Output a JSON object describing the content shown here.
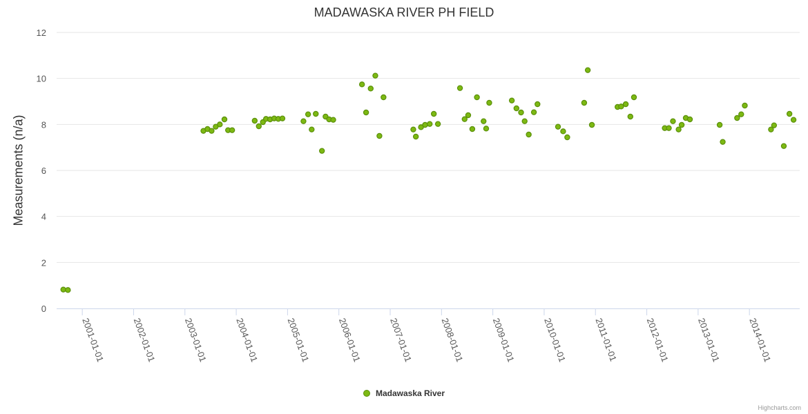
{
  "chart_data": {
    "type": "scatter",
    "title": "MADAWASKA RIVER PH FIELD",
    "ylabel": "Measurements (n/a)",
    "xlabel": "",
    "ylim": [
      0,
      12
    ],
    "yticks": [
      "0",
      "2",
      "4",
      "6",
      "8",
      "10",
      "12"
    ],
    "xticks": [
      "2001-01-01",
      "2002-01-01",
      "2003-01-01",
      "2004-01-01",
      "2005-01-01",
      "2006-01-01",
      "2007-01-01",
      "2008-01-01",
      "2009-01-01",
      "2010-01-01",
      "2011-01-01",
      "2012-01-01",
      "2013-01-01",
      "2014-01-01"
    ],
    "xrange": [
      2000.5,
      2014.98
    ],
    "legend": "bottom-center",
    "series": [
      {
        "name": "Madawaska River",
        "color": "#7db913",
        "points": [
          [
            2000.63,
            0.82
          ],
          [
            2000.72,
            0.8
          ],
          [
            2003.36,
            7.72
          ],
          [
            2003.44,
            7.8
          ],
          [
            2003.52,
            7.72
          ],
          [
            2003.6,
            7.9
          ],
          [
            2003.68,
            8.0
          ],
          [
            2003.77,
            8.22
          ],
          [
            2003.84,
            7.75
          ],
          [
            2003.92,
            7.75
          ],
          [
            2004.36,
            8.16
          ],
          [
            2004.44,
            7.92
          ],
          [
            2004.52,
            8.1
          ],
          [
            2004.58,
            8.24
          ],
          [
            2004.66,
            8.22
          ],
          [
            2004.74,
            8.26
          ],
          [
            2004.82,
            8.24
          ],
          [
            2004.9,
            8.26
          ],
          [
            2005.31,
            8.14
          ],
          [
            2005.4,
            8.44
          ],
          [
            2005.47,
            7.78
          ],
          [
            2005.55,
            8.46
          ],
          [
            2005.67,
            6.85
          ],
          [
            2005.74,
            8.34
          ],
          [
            2005.81,
            8.22
          ],
          [
            2005.89,
            8.2
          ],
          [
            2006.45,
            9.74
          ],
          [
            2006.53,
            8.52
          ],
          [
            2006.62,
            9.56
          ],
          [
            2006.71,
            10.12
          ],
          [
            2006.79,
            7.5
          ],
          [
            2006.87,
            9.18
          ],
          [
            2007.45,
            7.78
          ],
          [
            2007.5,
            7.47
          ],
          [
            2007.6,
            7.88
          ],
          [
            2007.68,
            7.98
          ],
          [
            2007.77,
            8.02
          ],
          [
            2007.85,
            8.46
          ],
          [
            2007.93,
            8.02
          ],
          [
            2008.36,
            9.58
          ],
          [
            2008.45,
            8.23
          ],
          [
            2008.52,
            8.4
          ],
          [
            2008.6,
            7.8
          ],
          [
            2008.69,
            9.18
          ],
          [
            2008.82,
            8.14
          ],
          [
            2008.87,
            7.82
          ],
          [
            2008.93,
            8.94
          ],
          [
            2009.37,
            9.04
          ],
          [
            2009.46,
            8.7
          ],
          [
            2009.55,
            8.52
          ],
          [
            2009.62,
            8.14
          ],
          [
            2009.7,
            7.56
          ],
          [
            2009.8,
            8.53
          ],
          [
            2009.87,
            8.88
          ],
          [
            2010.27,
            7.9
          ],
          [
            2010.37,
            7.7
          ],
          [
            2010.45,
            7.44
          ],
          [
            2010.78,
            8.94
          ],
          [
            2010.85,
            10.36
          ],
          [
            2010.93,
            7.98
          ],
          [
            2011.43,
            8.76
          ],
          [
            2011.5,
            8.78
          ],
          [
            2011.59,
            8.88
          ],
          [
            2011.68,
            8.34
          ],
          [
            2011.75,
            9.18
          ],
          [
            2012.35,
            7.84
          ],
          [
            2012.43,
            7.84
          ],
          [
            2012.51,
            8.14
          ],
          [
            2012.62,
            7.78
          ],
          [
            2012.68,
            7.98
          ],
          [
            2012.76,
            8.28
          ],
          [
            2012.84,
            8.22
          ],
          [
            2013.42,
            7.98
          ],
          [
            2013.48,
            7.24
          ],
          [
            2013.76,
            8.28
          ],
          [
            2013.84,
            8.44
          ],
          [
            2013.91,
            8.82
          ],
          [
            2014.42,
            7.78
          ],
          [
            2014.48,
            7.96
          ],
          [
            2014.67,
            7.06
          ],
          [
            2014.78,
            8.46
          ],
          [
            2014.86,
            8.2
          ]
        ]
      }
    ]
  },
  "credits": "Highcharts.com"
}
